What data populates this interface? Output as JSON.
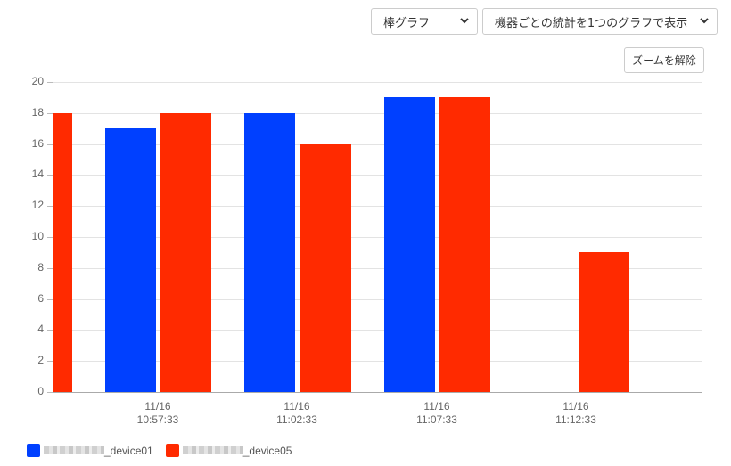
{
  "controls": {
    "chart_type_select": "棒グラフ",
    "display_mode_select": "機器ごとの統計を1つのグラフで表示",
    "reset_zoom_button": "ズームを解除"
  },
  "colors": {
    "series1": "#0040ff",
    "series2": "#ff2a00"
  },
  "chart_data": {
    "type": "bar",
    "title": "",
    "xlabel": "",
    "ylabel": "",
    "ylim": [
      0,
      20
    ],
    "yticks": [
      0,
      2,
      4,
      6,
      8,
      10,
      12,
      14,
      16,
      18,
      20
    ],
    "grid": true,
    "legend_position": "bottom-left",
    "categories": [
      "(partial, before 10:57:33)",
      "11/16 10:57:33",
      "11/16 11:02:33",
      "11/16 11:07:33",
      "11/16 11:12:33"
    ],
    "x_tick_labels": [
      {
        "date": "11/16",
        "time": "10:57:33"
      },
      {
        "date": "11/16",
        "time": "11:02:33"
      },
      {
        "date": "11/16",
        "time": "11:07:33"
      },
      {
        "date": "11/16",
        "time": "11:12:33"
      }
    ],
    "series": [
      {
        "name": "[redacted]_device01",
        "suffix": "_device01",
        "color": "#0040ff",
        "values": [
          null,
          17,
          18,
          19,
          null
        ]
      },
      {
        "name": "[redacted]_device05",
        "suffix": "_device05",
        "color": "#ff2a00",
        "values": [
          18,
          18,
          16,
          19,
          9
        ]
      }
    ]
  }
}
